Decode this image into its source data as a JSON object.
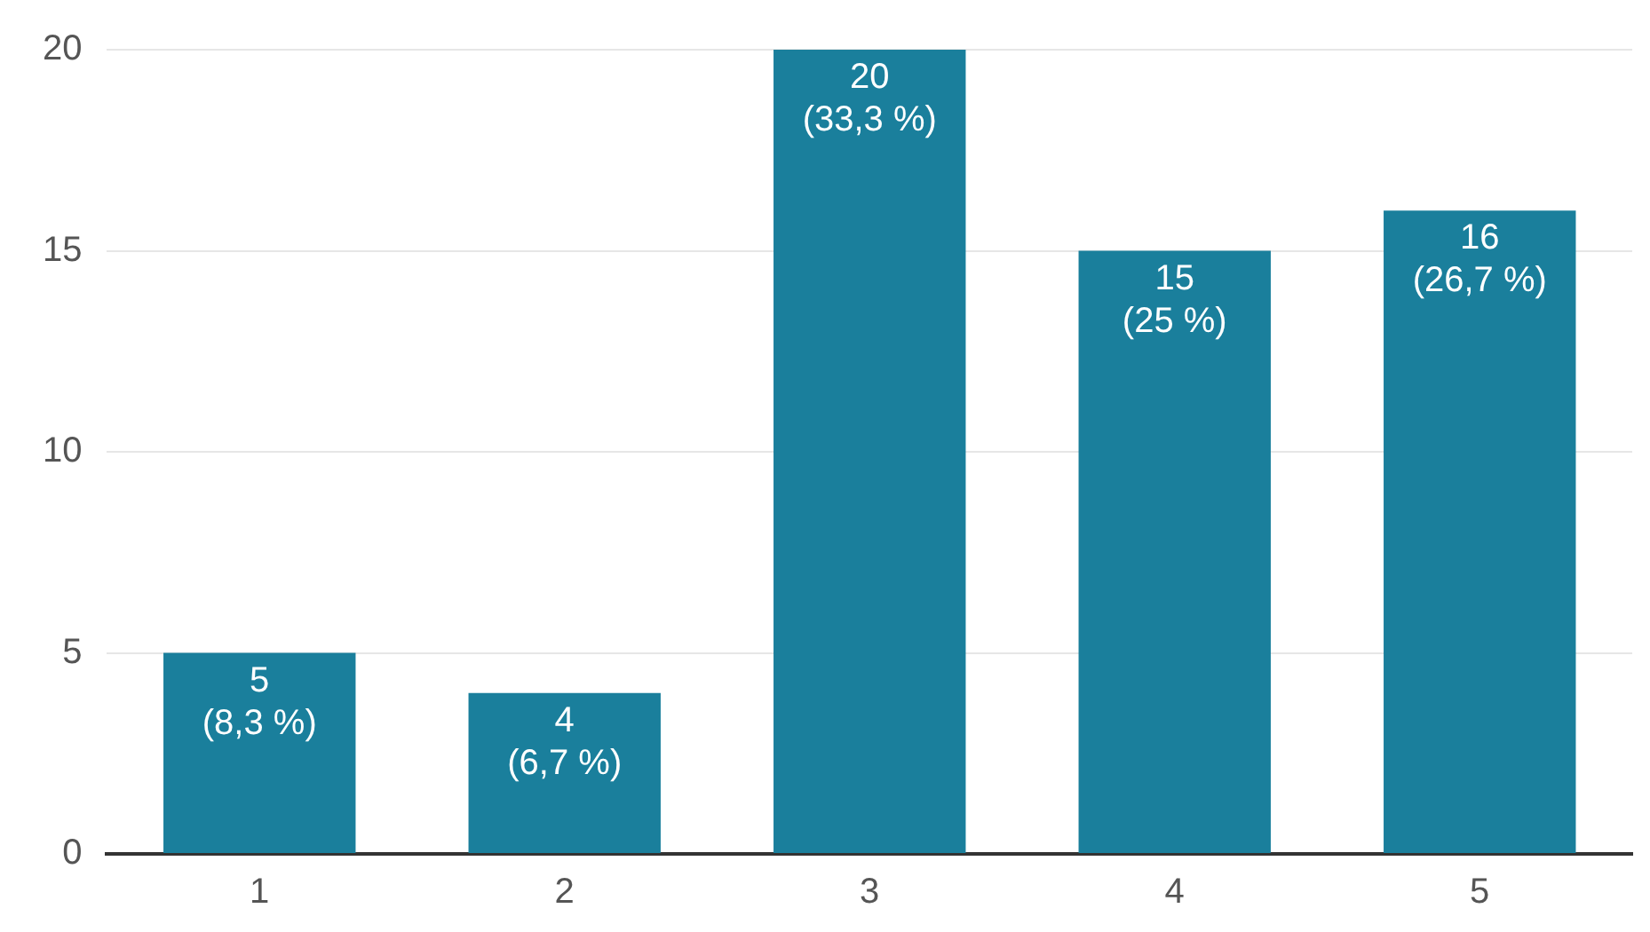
{
  "chart_data": {
    "type": "bar",
    "categories": [
      "1",
      "2",
      "3",
      "4",
      "5"
    ],
    "values": [
      5,
      4,
      20,
      15,
      16
    ],
    "value_labels": [
      "5 (8,3 %)",
      "4 (6,7 %)",
      "20 (33,3 %)",
      "15 (25 %)",
      "16 (26,7 %)"
    ],
    "color": "#1a7f9c",
    "ylim": [
      0,
      20
    ],
    "yticks": [
      0,
      5,
      10,
      15,
      20
    ],
    "grid": "y",
    "legend": false
  }
}
